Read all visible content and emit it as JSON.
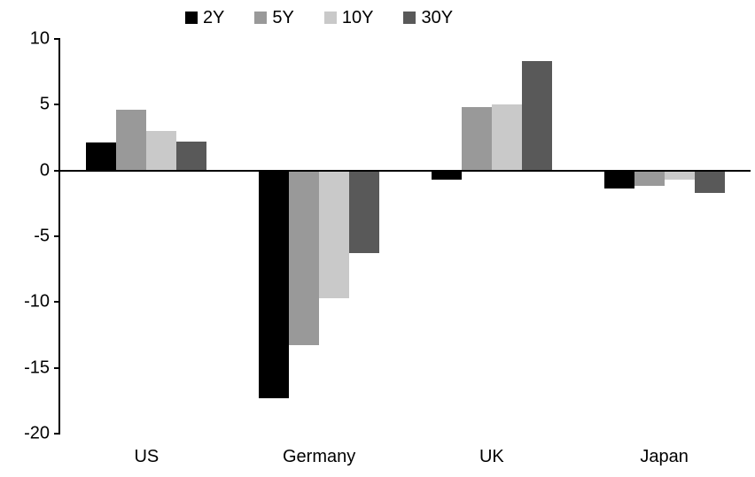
{
  "chart_data": {
    "type": "bar",
    "title": "",
    "categories": [
      "US",
      "Germany",
      "UK",
      "Japan"
    ],
    "series": [
      {
        "name": "2Y",
        "color": "#000000",
        "values": [
          2.1,
          -17.3,
          -0.7,
          -1.4
        ]
      },
      {
        "name": "5Y",
        "color": "#999999",
        "values": [
          4.6,
          -13.3,
          4.8,
          -1.2
        ]
      },
      {
        "name": "10Y",
        "color": "#c9c9c9",
        "values": [
          3.0,
          -9.7,
          5.0,
          -0.7
        ]
      },
      {
        "name": "30Y",
        "color": "#595959",
        "values": [
          2.2,
          -6.3,
          8.3,
          -1.7
        ]
      }
    ],
    "ylim": [
      -20,
      10
    ],
    "yticks": [
      10,
      5,
      0,
      -5,
      -10,
      -15,
      -20
    ],
    "xlabel": "",
    "ylabel": "",
    "grid": false,
    "legend_position": "top-center",
    "background": "#ffffff",
    "axis_color": "#000000"
  }
}
